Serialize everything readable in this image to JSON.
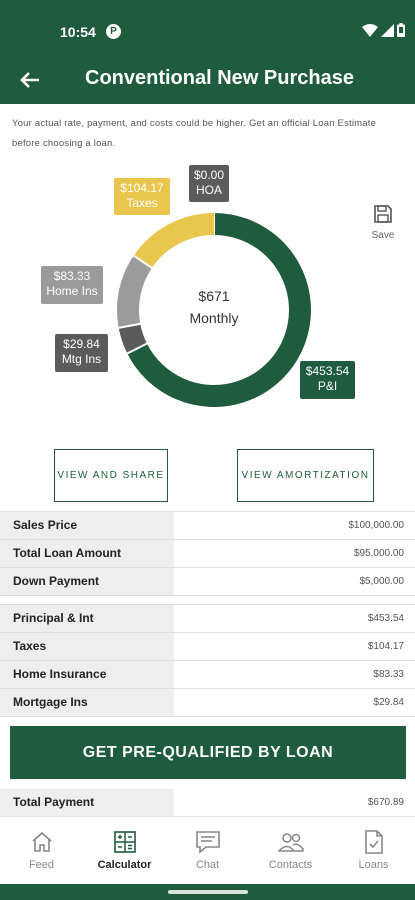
{
  "status_bar": {
    "time": "10:54",
    "app_badge": "P"
  },
  "header": {
    "title": "Conventional New Purchase"
  },
  "disclaimer": "Your actual rate, payment, and costs could be higher. Get an official Loan Estimate before choosing a loan.",
  "chart_data": {
    "type": "pie",
    "variant": "donut",
    "center_amount": "$671",
    "center_label": "Monthly",
    "slices": [
      {
        "label": "P&I",
        "amount": "$453.54",
        "value": 453.54,
        "color": "#1f5c3d"
      },
      {
        "label": "Mtg Ins",
        "amount": "$29.84",
        "value": 29.84,
        "color": "#5b5b5b"
      },
      {
        "label": "Home Ins",
        "amount": "$83.33",
        "value": 83.33,
        "color": "#9b9b9b"
      },
      {
        "label": "Taxes",
        "amount": "$104.17",
        "value": 104.17,
        "color": "#e9c64e"
      },
      {
        "label": "HOA",
        "amount": "$0.00",
        "value": 0,
        "color": "#5b5b5b"
      }
    ]
  },
  "save_label": "Save",
  "buttons": {
    "share": "VIEW AND SHARE",
    "amortization": "VIEW AMORTIZATION",
    "prequalify": "GET PRE-QUALIFIED BY LOAN"
  },
  "loan_summary": [
    {
      "label": "Sales Price",
      "value": "$100,000.00"
    },
    {
      "label": "Total Loan Amount",
      "value": "$95,000.00"
    },
    {
      "label": "Down Payment",
      "value": "$5,000.00"
    }
  ],
  "payment_breakdown": [
    {
      "label": "Principal & Int",
      "value": "$453.54"
    },
    {
      "label": "Taxes",
      "value": "$104.17"
    },
    {
      "label": "Home Insurance",
      "value": "$83.33"
    },
    {
      "label": "Mortgage Ins",
      "value": "$29.84"
    }
  ],
  "total": {
    "label": "Total Payment",
    "value": "$670.89"
  },
  "nav": [
    {
      "label": "Feed",
      "icon": "home-icon",
      "active": false
    },
    {
      "label": "Calculator",
      "icon": "calculator-icon",
      "active": true
    },
    {
      "label": "Chat",
      "icon": "chat-icon",
      "active": false
    },
    {
      "label": "Contacts",
      "icon": "contacts-icon",
      "active": false
    },
    {
      "label": "Loans",
      "icon": "document-icon",
      "active": false
    }
  ]
}
